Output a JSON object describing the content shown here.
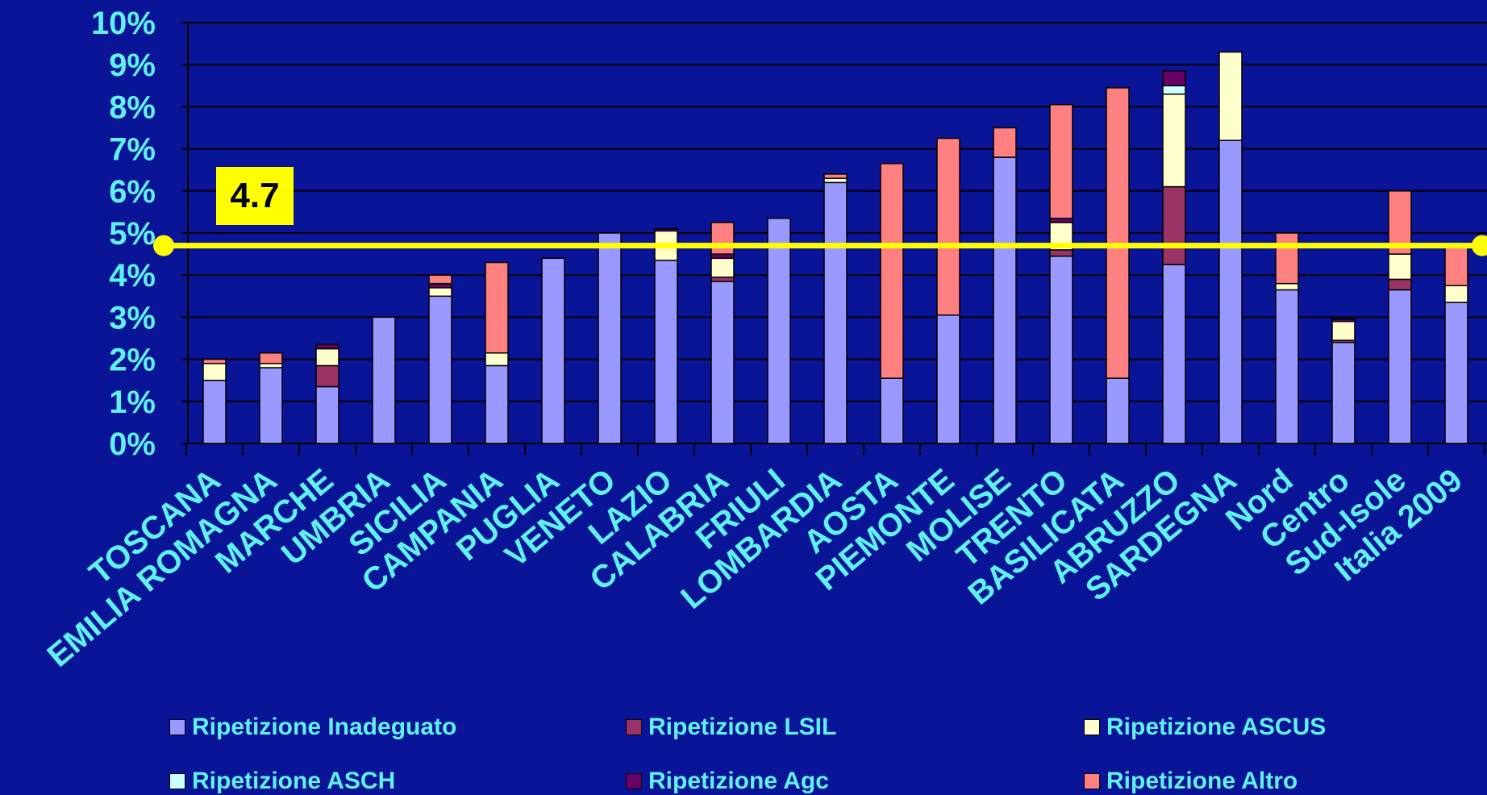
{
  "reference_label": "4.7",
  "colors": {
    "background": "#0a1496",
    "text": "#5ff0f0",
    "reference_line": "#ffff00"
  },
  "chart_data": {
    "type": "bar",
    "stacked": true,
    "categories": [
      "TOSCANA",
      "EMILIA ROMAGNA",
      "MARCHE",
      "UMBRIA",
      "SICILIA",
      "CAMPANIA",
      "PUGLIA",
      "VENETO",
      "LAZIO",
      "CALABRIA",
      "FRIULI",
      "LOMBARDIA",
      "AOSTA",
      "PIEMONTE",
      "MOLISE",
      "TRENTO",
      "BASILICATA",
      "ABRUZZO",
      "SARDEGNA",
      "Nord",
      "Centro",
      "Sud-Isole",
      "Italia 2009"
    ],
    "ylim": [
      0,
      10
    ],
    "yticks": [
      "0%",
      "1%",
      "2%",
      "3%",
      "4%",
      "5%",
      "6%",
      "7%",
      "8%",
      "9%",
      "10%"
    ],
    "reference_value": 4.7,
    "grid": true,
    "legend_position": "bottom",
    "series": [
      {
        "name": "Ripetizione Inadeguato",
        "color": "#9999ff",
        "values": [
          1.5,
          1.8,
          1.35,
          3.0,
          3.5,
          1.85,
          4.4,
          5.0,
          4.35,
          3.85,
          5.35,
          6.2,
          1.55,
          3.05,
          6.8,
          4.45,
          1.55,
          4.25,
          7.2,
          3.65,
          2.4,
          3.65,
          3.35
        ]
      },
      {
        "name": "Ripetizione LSIL",
        "color": "#993366",
        "values": [
          0,
          0,
          0.5,
          0,
          0,
          0,
          0,
          0,
          0,
          0.1,
          0,
          0,
          0,
          0,
          0,
          0.15,
          0,
          1.85,
          0,
          0,
          0.05,
          0.25,
          0
        ]
      },
      {
        "name": "Ripetizione ASCUS",
        "color": "#ffffcc",
        "values": [
          0.4,
          0.1,
          0.4,
          0,
          0.2,
          0.3,
          0,
          0,
          0.7,
          0.45,
          0,
          0.1,
          0,
          0,
          0,
          0.65,
          0,
          2.2,
          2.1,
          0.15,
          0.45,
          0.6,
          0.4
        ]
      },
      {
        "name": "Ripetizione ASCH",
        "color": "#ccffff",
        "values": [
          0,
          0,
          0,
          0,
          0,
          0,
          0,
          0,
          0,
          0,
          0,
          0,
          0,
          0,
          0,
          0,
          0,
          0.2,
          0,
          0,
          0,
          0,
          0
        ]
      },
      {
        "name": "Ripetizione Agc",
        "color": "#660066",
        "values": [
          0,
          0,
          0.1,
          0,
          0.1,
          0,
          0,
          0,
          0.05,
          0.1,
          0,
          0,
          0,
          0,
          0,
          0.1,
          0,
          0.35,
          0,
          0,
          0.05,
          0,
          0
        ]
      },
      {
        "name": "Ripetizione Altro",
        "color": "#ff8080",
        "values": [
          0.1,
          0.25,
          0,
          0,
          0.2,
          2.15,
          0,
          0,
          0,
          0.75,
          0,
          0.1,
          5.1,
          4.2,
          0.7,
          2.7,
          6.9,
          0,
          0,
          1.2,
          0,
          1.5,
          1.0
        ]
      }
    ]
  }
}
